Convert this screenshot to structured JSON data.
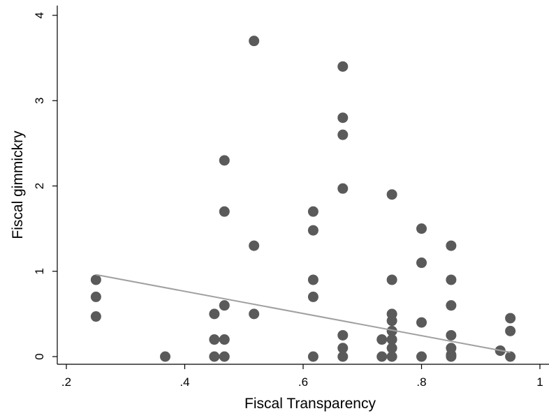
{
  "chart_data": {
    "type": "scatter",
    "xlabel": "Fiscal Transparency",
    "ylabel": "Fiscal gimmickry",
    "xlim": [
      0.2,
      1.0
    ],
    "ylim": [
      0,
      4
    ],
    "xticks": [
      ".2",
      ".4",
      ".6",
      ".8",
      "1"
    ],
    "xtick_values": [
      0.2,
      0.4,
      0.6,
      0.8,
      1.0
    ],
    "yticks": [
      "0",
      "1",
      "2",
      "3",
      "4"
    ],
    "ytick_values": [
      0,
      1,
      2,
      3,
      4
    ],
    "grid": false,
    "legend": "none",
    "colors": {
      "points": "#5a5a5a",
      "fit_line": "#a0a0a0",
      "axis": "#000000"
    },
    "points": [
      {
        "x": 0.25,
        "y": 0.9
      },
      {
        "x": 0.25,
        "y": 0.7
      },
      {
        "x": 0.25,
        "y": 0.47
      },
      {
        "x": 0.367,
        "y": 0.0
      },
      {
        "x": 0.45,
        "y": 0.5
      },
      {
        "x": 0.45,
        "y": 0.2
      },
      {
        "x": 0.45,
        "y": 0.0
      },
      {
        "x": 0.467,
        "y": 2.3
      },
      {
        "x": 0.467,
        "y": 1.7
      },
      {
        "x": 0.467,
        "y": 0.6
      },
      {
        "x": 0.467,
        "y": 0.2
      },
      {
        "x": 0.467,
        "y": 0.0
      },
      {
        "x": 0.517,
        "y": 3.7
      },
      {
        "x": 0.517,
        "y": 1.3
      },
      {
        "x": 0.517,
        "y": 0.5
      },
      {
        "x": 0.617,
        "y": 1.7
      },
      {
        "x": 0.617,
        "y": 1.48
      },
      {
        "x": 0.617,
        "y": 0.9
      },
      {
        "x": 0.617,
        "y": 0.7
      },
      {
        "x": 0.617,
        "y": 0.0
      },
      {
        "x": 0.667,
        "y": 3.4
      },
      {
        "x": 0.667,
        "y": 2.8
      },
      {
        "x": 0.667,
        "y": 2.6
      },
      {
        "x": 0.667,
        "y": 1.97
      },
      {
        "x": 0.667,
        "y": 0.25
      },
      {
        "x": 0.667,
        "y": 0.1
      },
      {
        "x": 0.667,
        "y": 0.0
      },
      {
        "x": 0.733,
        "y": 0.2
      },
      {
        "x": 0.733,
        "y": 0.0
      },
      {
        "x": 0.75,
        "y": 1.9
      },
      {
        "x": 0.75,
        "y": 0.9
      },
      {
        "x": 0.75,
        "y": 0.5
      },
      {
        "x": 0.75,
        "y": 0.42
      },
      {
        "x": 0.75,
        "y": 0.3
      },
      {
        "x": 0.75,
        "y": 0.2
      },
      {
        "x": 0.75,
        "y": 0.1
      },
      {
        "x": 0.75,
        "y": 0.0
      },
      {
        "x": 0.8,
        "y": 1.5
      },
      {
        "x": 0.8,
        "y": 1.1
      },
      {
        "x": 0.8,
        "y": 0.4
      },
      {
        "x": 0.8,
        "y": 0.0
      },
      {
        "x": 0.85,
        "y": 1.3
      },
      {
        "x": 0.85,
        "y": 0.9
      },
      {
        "x": 0.85,
        "y": 0.6
      },
      {
        "x": 0.85,
        "y": 0.25
      },
      {
        "x": 0.85,
        "y": 0.1
      },
      {
        "x": 0.85,
        "y": 0.02
      },
      {
        "x": 0.85,
        "y": 0.0
      },
      {
        "x": 0.933,
        "y": 0.07
      },
      {
        "x": 0.95,
        "y": 0.45
      },
      {
        "x": 0.95,
        "y": 0.3
      },
      {
        "x": 0.95,
        "y": 0.0
      }
    ],
    "fit_line": {
      "x": [
        0.25,
        0.95
      ],
      "y": [
        0.96,
        0.05
      ]
    }
  }
}
